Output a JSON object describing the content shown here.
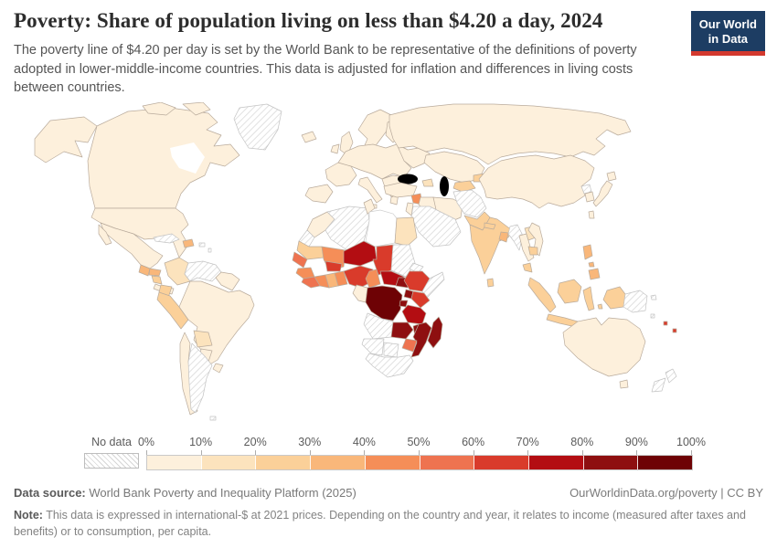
{
  "header": {
    "title": "Poverty: Share of population living on less than $4.20 a day, 2024",
    "subtitle": "The poverty line of $4.20 per day is set by the World Bank to be representative of the definitions of poverty adopted in lower-middle-income countries. This data is adjusted for inflation and differences in living costs between countries."
  },
  "logo": {
    "line1": "Our World",
    "line2": "in Data",
    "bg_color": "#1d3d63",
    "accent_color": "#d3392e"
  },
  "legend": {
    "no_data_label": "No data",
    "ticks": [
      "0%",
      "10%",
      "20%",
      "30%",
      "40%",
      "50%",
      "60%",
      "70%",
      "80%",
      "90%",
      "100%"
    ],
    "colors": [
      "#fdf0dc",
      "#fce3bd",
      "#fbd099",
      "#f9b77a",
      "#f58e58",
      "#ee7350",
      "#d93b2b",
      "#b30d12",
      "#8e0f10",
      "#6e0205"
    ]
  },
  "map": {
    "border_color": "#b9ab9c",
    "no_data_style": "diagonal-hatch",
    "ocean_color": "#ffffff"
  },
  "footer": {
    "datasource_label": "Data source:",
    "datasource_text": " World Bank Poverty and Inequality Platform (2025)",
    "rights": "OurWorldinData.org/poverty | CC BY",
    "note_label": "Note:",
    "note_text": " This data is expressed in international-$ at 2021 prices. Depending on the country and year, it relates to income (measured after taxes and benefits) or to consumption, per capita."
  },
  "chart_data": {
    "type": "choropleth_map",
    "title": "Poverty: Share of population living on less than $4.20 a day, 2024",
    "unit": "% of population",
    "bins": [
      "0-10%",
      "10-20%",
      "20-30%",
      "30-40%",
      "40-50%",
      "50-60%",
      "60-70%",
      "70-80%",
      "80-90%",
      "90-100%"
    ],
    "legend_position": "bottom",
    "regions": [
      {
        "name": "United States",
        "range": "0-10%"
      },
      {
        "name": "Canada",
        "range": "0-10%"
      },
      {
        "name": "Mexico",
        "range": "0-10%"
      },
      {
        "name": "Guatemala",
        "range": "30-40%"
      },
      {
        "name": "Honduras",
        "range": "30-40%"
      },
      {
        "name": "Nicaragua",
        "range": "20-30%"
      },
      {
        "name": "Costa Rica & Panama",
        "range": "0-10%"
      },
      {
        "name": "Haiti/Dominican Rep.",
        "range": "30-40%"
      },
      {
        "name": "Cuba",
        "range": "No data"
      },
      {
        "name": "Greenland",
        "range": "No data"
      },
      {
        "name": "Colombia",
        "range": "10-20%"
      },
      {
        "name": "Venezuela",
        "range": "No data"
      },
      {
        "name": "Ecuador",
        "range": "20-30%"
      },
      {
        "name": "Peru",
        "range": "20-30%"
      },
      {
        "name": "Bolivia",
        "range": "10-20%"
      },
      {
        "name": "Brazil",
        "range": "0-10%"
      },
      {
        "name": "Paraguay",
        "range": "0-10%"
      },
      {
        "name": "Uruguay",
        "range": "0-10%"
      },
      {
        "name": "Chile",
        "range": "0-10%"
      },
      {
        "name": "Argentina",
        "range": "No data"
      },
      {
        "name": "Guyana & Suriname",
        "range": "0-10%"
      },
      {
        "name": "Europe (most countries)",
        "range": "0-10%"
      },
      {
        "name": "Russia",
        "range": "0-10%"
      },
      {
        "name": "Turkey",
        "range": "0-10%"
      },
      {
        "name": "Azerbaijan & Caucasus",
        "range": "10-20%"
      },
      {
        "name": "Syria",
        "range": "40-50%"
      },
      {
        "name": "Iraq",
        "range": "0-10%"
      },
      {
        "name": "Iran",
        "range": "0-10%"
      },
      {
        "name": "Saudi Arabia / Yemen / Oman",
        "range": "No data"
      },
      {
        "name": "Afghanistan & Turkmenistan",
        "range": "No data"
      },
      {
        "name": "Kazakhstan",
        "range": "0-10%"
      },
      {
        "name": "Uzbekistan & Tajikistan",
        "range": "20-30%"
      },
      {
        "name": "Kyrgyzstan",
        "range": "20-30%"
      },
      {
        "name": "Pakistan",
        "range": "20-30%"
      },
      {
        "name": "India",
        "range": "20-30%"
      },
      {
        "name": "Nepal",
        "range": "20-30%"
      },
      {
        "name": "Bangladesh",
        "range": "30-40%"
      },
      {
        "name": "Sri Lanka",
        "range": "20-30%"
      },
      {
        "name": "China",
        "range": "0-10%"
      },
      {
        "name": "Mongolia",
        "range": "0-10%"
      },
      {
        "name": "Japan",
        "range": "0-10%"
      },
      {
        "name": "South Korea",
        "range": "0-10%"
      },
      {
        "name": "North Korea",
        "range": "No data"
      },
      {
        "name": "Taiwan",
        "range": "0-10%"
      },
      {
        "name": "Myanmar",
        "range": "No data"
      },
      {
        "name": "Thailand",
        "range": "0-10%"
      },
      {
        "name": "Laos",
        "range": "10-20%"
      },
      {
        "name": "Vietnam",
        "range": "0-10%"
      },
      {
        "name": "Cambodia",
        "range": "20-30%"
      },
      {
        "name": "Malaysia",
        "range": "20-30%"
      },
      {
        "name": "Indonesia",
        "range": "20-30%"
      },
      {
        "name": "Philippines",
        "range": "30-40%"
      },
      {
        "name": "Papua New Guinea",
        "range": "No data"
      },
      {
        "name": "Australia",
        "range": "0-10%"
      },
      {
        "name": "New Zealand",
        "range": "No data"
      },
      {
        "name": "Morocco",
        "range": "0-10%"
      },
      {
        "name": "Algeria",
        "range": "No data"
      },
      {
        "name": "Tunisia",
        "range": "0-10%"
      },
      {
        "name": "Libya",
        "range": "No data"
      },
      {
        "name": "Egypt",
        "range": "10-20%"
      },
      {
        "name": "Western Sahara",
        "range": "No data"
      },
      {
        "name": "Mauritania",
        "range": "20-30%"
      },
      {
        "name": "Mali",
        "range": "40-50%"
      },
      {
        "name": "Senegal",
        "range": "50-60%"
      },
      {
        "name": "Guinea",
        "range": "40-50%"
      },
      {
        "name": "Sierra Leone & Liberia",
        "range": "50-60%"
      },
      {
        "name": "Ivory Coast",
        "range": "40-50%"
      },
      {
        "name": "Ghana",
        "range": "30-40%"
      },
      {
        "name": "Togo & Benin",
        "range": "40-50%"
      },
      {
        "name": "Burkina Faso",
        "range": "60-70%"
      },
      {
        "name": "Niger",
        "range": "70-80%"
      },
      {
        "name": "Chad",
        "range": "60-70%"
      },
      {
        "name": "Nigeria",
        "range": "60-70%"
      },
      {
        "name": "Cameroon",
        "range": "40-50%"
      },
      {
        "name": "Central African Republic",
        "range": "70-80%"
      },
      {
        "name": "Sudan",
        "range": "No data"
      },
      {
        "name": "South Sudan",
        "range": "80-90%"
      },
      {
        "name": "Eritrea",
        "range": "No data"
      },
      {
        "name": "Ethiopia",
        "range": "60-70%"
      },
      {
        "name": "Somalia",
        "range": "No data"
      },
      {
        "name": "Uganda",
        "range": "80-90%"
      },
      {
        "name": "Kenya",
        "range": "60-70%"
      },
      {
        "name": "Rwanda & Burundi",
        "range": "80-90%"
      },
      {
        "name": "Gabon & Congo",
        "range": "0-10%"
      },
      {
        "name": "Democratic Republic of Congo",
        "range": "90-100%"
      },
      {
        "name": "Tanzania",
        "range": "70-80%"
      },
      {
        "name": "Angola",
        "range": "No data"
      },
      {
        "name": "Zambia",
        "range": "80-90%"
      },
      {
        "name": "Malawi",
        "range": "80-90%"
      },
      {
        "name": "Mozambique",
        "range": "80-90%"
      },
      {
        "name": "Zimbabwe",
        "range": "50-60%"
      },
      {
        "name": "Namibia",
        "range": "No data"
      },
      {
        "name": "Botswana",
        "range": "No data"
      },
      {
        "name": "South Africa",
        "range": "No data"
      },
      {
        "name": "Madagascar",
        "range": "80-90%"
      }
    ]
  }
}
